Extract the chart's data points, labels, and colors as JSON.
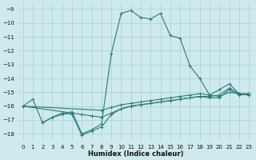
{
  "xlabel": "Humidex (Indice chaleur)",
  "bg_color": "#ceeaec",
  "grid_color": "#aacfd2",
  "line_color": "#2d7a7a",
  "xlim": [
    -0.5,
    23.5
  ],
  "ylim": [
    -18.5,
    -8.5
  ],
  "yticks": [
    -18,
    -17,
    -16,
    -15,
    -14,
    -13,
    -12,
    -11,
    -10,
    -9
  ],
  "xticks": [
    0,
    1,
    2,
    3,
    4,
    5,
    6,
    7,
    8,
    9,
    10,
    11,
    12,
    13,
    14,
    15,
    16,
    17,
    18,
    19,
    20,
    21,
    22,
    23
  ],
  "series": [
    {
      "x": [
        0,
        1,
        2,
        3,
        4,
        5,
        6,
        7,
        8,
        9,
        10,
        11,
        12,
        13,
        14,
        15,
        16,
        17,
        18,
        19,
        20,
        21,
        22,
        23
      ],
      "y": [
        -16.0,
        -15.5,
        -17.2,
        -16.8,
        -16.6,
        -16.4,
        -18.0,
        -17.7,
        -17.3,
        -12.2,
        -9.3,
        -9.1,
        -9.6,
        -9.7,
        -9.3,
        -10.9,
        -11.1,
        -13.1,
        -14.0,
        -15.2,
        -14.8,
        -14.4,
        -15.1,
        -15.2
      ]
    },
    {
      "x": [
        0,
        8,
        9,
        10,
        11,
        12,
        13,
        14,
        15,
        16,
        17,
        18,
        19,
        20,
        21,
        22,
        23
      ],
      "y": [
        -16.0,
        -16.3,
        -16.1,
        -15.9,
        -15.8,
        -15.7,
        -15.6,
        -15.5,
        -15.4,
        -15.3,
        -15.2,
        -15.1,
        -15.2,
        -15.3,
        -15.0,
        -15.1,
        -15.2
      ]
    },
    {
      "x": [
        0,
        5,
        6,
        7,
        8,
        9,
        10,
        11,
        12,
        13,
        14,
        15,
        16,
        17,
        18,
        19,
        20,
        21,
        22,
        23
      ],
      "y": [
        -16.0,
        -16.5,
        -16.6,
        -16.7,
        -16.8,
        -16.5,
        -16.2,
        -16.0,
        -15.9,
        -15.8,
        -15.7,
        -15.6,
        -15.5,
        -15.4,
        -15.3,
        -15.3,
        -15.2,
        -14.7,
        -15.1,
        -15.1
      ]
    },
    {
      "x": [
        2,
        3,
        4,
        5,
        6,
        7,
        8,
        9,
        10,
        11,
        12,
        13,
        14,
        15,
        16,
        17,
        18,
        19,
        20,
        21,
        22,
        23
      ],
      "y": [
        -17.2,
        -16.8,
        -16.5,
        -16.6,
        -18.1,
        -17.8,
        -17.5,
        -16.6,
        -16.2,
        -16.0,
        -15.9,
        -15.8,
        -15.7,
        -15.6,
        -15.5,
        -15.4,
        -15.3,
        -15.4,
        -15.4,
        -14.8,
        -15.2,
        -15.1
      ]
    }
  ]
}
